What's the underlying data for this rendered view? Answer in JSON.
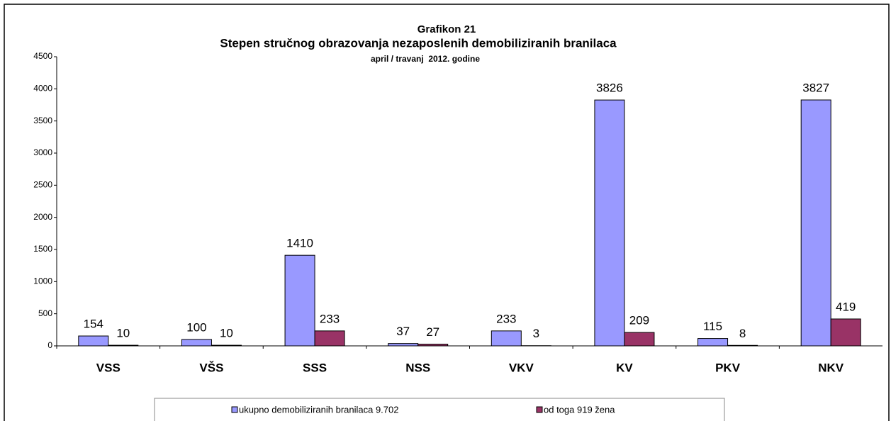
{
  "chart_data": {
    "type": "bar",
    "title": "Grafikon 21",
    "subtitle": "Stepen stručnog obrazovanja nezaposlenih demobiliziranih branilaca",
    "subtitle2": "april / travanj  2012. godine",
    "categories": [
      "VSS",
      "VŠS",
      "SSS",
      "NSS",
      "VKV",
      "KV",
      "PKV",
      "NKV"
    ],
    "series": [
      {
        "name": "ukupno demobiliziranih branilaca 9.702",
        "color": "#9999ff",
        "values": [
          154,
          100,
          1410,
          37,
          233,
          3826,
          115,
          3827
        ]
      },
      {
        "name": "od toga 919 žena",
        "color": "#993366",
        "values": [
          10,
          10,
          233,
          27,
          3,
          209,
          8,
          419
        ]
      }
    ],
    "ylim": [
      0,
      4500
    ],
    "yticks": [
      0,
      500,
      1000,
      1500,
      2000,
      2500,
      3000,
      3500,
      4000,
      4500
    ],
    "grid": false,
    "legend": "bottom"
  }
}
